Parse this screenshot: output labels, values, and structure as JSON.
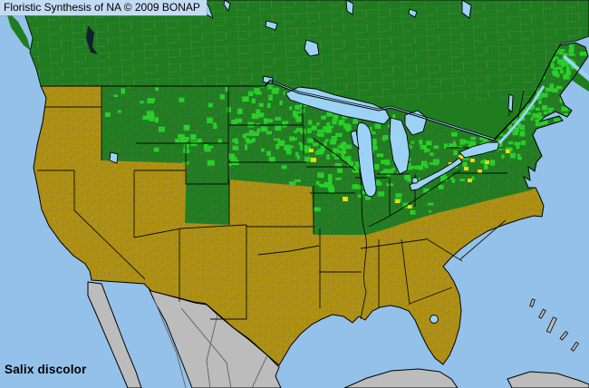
{
  "header": {
    "title": "Floristic Synthesis of NA © 2009 BONAP"
  },
  "footer": {
    "species_label": "Salix discolor"
  },
  "map": {
    "region_shown": "North America (conterminous US, southern Canada, northern Mexico)",
    "colors": {
      "ocean": "#93c1ea",
      "lake": "#9cd2f4",
      "panel": "#c3dcf3",
      "present_state": "#1f7d1f",
      "present_county": "#25d425",
      "absent": "#b09110",
      "no_data_land": "#bcbcbc",
      "rare_county": "#ffe000",
      "county_line": "#6e6e6e",
      "state_line": "#000000",
      "canada_line": "#728a72",
      "stipple": "#135513",
      "text": "#000000"
    },
    "categories": [
      {
        "name": "species-present-region",
        "color_key": "present_state"
      },
      {
        "name": "species-present-county-record",
        "color_key": "present_county"
      },
      {
        "name": "species-rare-county",
        "color_key": "rare_county"
      },
      {
        "name": "species-absent-region",
        "color_key": "absent"
      },
      {
        "name": "land-outside-coverage",
        "color_key": "no_data_land"
      },
      {
        "name": "water",
        "color_key": "ocean"
      }
    ]
  }
}
